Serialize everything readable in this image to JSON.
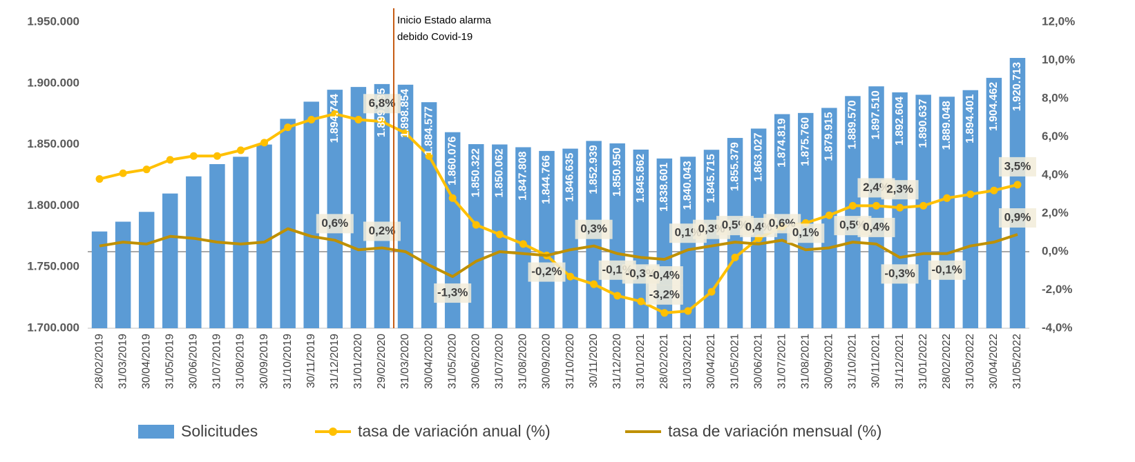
{
  "chart_data": {
    "type": "bar-line",
    "annotation": [
      "Inicio Estado alarma",
      "debido Covid-19"
    ],
    "categories": [
      "28/02/2019",
      "31/03/2019",
      "30/04/2019",
      "31/05/2019",
      "30/06/2019",
      "31/07/2019",
      "31/08/2019",
      "30/09/2019",
      "31/10/2019",
      "30/11/2019",
      "31/12/2019",
      "31/01/2020",
      "29/02/2020",
      "31/03/2020",
      "30/04/2020",
      "31/05/2020",
      "30/06/2020",
      "31/07/2020",
      "31/08/2020",
      "30/09/2020",
      "31/10/2020",
      "30/11/2020",
      "31/12/2020",
      "31/01/2021",
      "28/02/2021",
      "31/03/2021",
      "30/04/2021",
      "31/05/2021",
      "30/06/2021",
      "31/07/2021",
      "31/08/2021",
      "30/09/2021",
      "31/10/2021",
      "30/11/2021",
      "31/12/2021",
      "31/01/2022",
      "28/02/2022",
      "31/03/2022",
      "30/04/2022",
      "31/05/2022"
    ],
    "ylim": [
      1700000,
      1950000
    ],
    "yticks": [
      {
        "value": 1700000,
        "label": "1.700.000"
      },
      {
        "value": 1750000,
        "label": "1.750.000"
      },
      {
        "value": 1800000,
        "label": "1.800.000"
      },
      {
        "value": 1850000,
        "label": "1.850.000"
      },
      {
        "value": 1900000,
        "label": "1.900.000"
      },
      {
        "value": 1950000,
        "label": "1.950.000"
      }
    ],
    "y2lim": [
      -4,
      12
    ],
    "y2ticks": [
      {
        "value": -4,
        "label": "-4,0%"
      },
      {
        "value": -2,
        "label": "-2,0%"
      },
      {
        "value": 0,
        "label": "0,0%"
      },
      {
        "value": 2,
        "label": "2,0%"
      },
      {
        "value": 4,
        "label": "4,0%"
      },
      {
        "value": 6,
        "label": "6,0%"
      },
      {
        "value": 8,
        "label": "8,0%"
      },
      {
        "value": 10,
        "label": "10,0%"
      },
      {
        "value": 12,
        "label": "12,0%"
      }
    ],
    "series": [
      {
        "name": "Solicitudes",
        "type": "bar",
        "color": "#5b9bd5",
        "values": [
          1779000,
          1787000,
          1795000,
          1810000,
          1824000,
          1834000,
          1840000,
          1850000,
          1871000,
          1885000,
          1894744,
          1897000,
          1899385,
          1898854,
          1884577,
          1860076,
          1850322,
          1850062,
          1847808,
          1844766,
          1846635,
          1852939,
          1850950,
          1845862,
          1838601,
          1840043,
          1845715,
          1855379,
          1863027,
          1874819,
          1875760,
          1879915,
          1889570,
          1897510,
          1892604,
          1890637,
          1889048,
          1894401,
          1904462,
          1920713
        ],
        "value_labels": [
          null,
          null,
          null,
          null,
          null,
          null,
          null,
          null,
          null,
          null,
          "1.894.744",
          null,
          "1.899.385",
          "1.898.854",
          "1.884.577",
          "1.860.076",
          "1.850.322",
          "1.850.062",
          "1.847.808",
          "1.844.766",
          "1.846.635",
          "1.852.939",
          "1.850.950",
          "1.845.862",
          "1.838.601",
          "1.840.043",
          "1.845.715",
          "1.855.379",
          "1.863.027",
          "1.874.819",
          "1.875.760",
          "1.879.915",
          "1.889.570",
          "1.897.510",
          "1.892.604",
          "1.890.637",
          "1.889.048",
          "1.894.401",
          "1.904.462",
          "1.920.713"
        ]
      },
      {
        "name": "tasa de variación anual (%)",
        "type": "line",
        "axis": "y2",
        "color": "#ffc000",
        "marker": true,
        "values": [
          3.8,
          4.1,
          4.3,
          4.8,
          5.0,
          5.0,
          5.3,
          5.7,
          6.5,
          6.9,
          7.2,
          6.9,
          6.8,
          6.2,
          5.0,
          2.8,
          1.4,
          0.9,
          0.4,
          -0.2,
          -1.3,
          -1.7,
          -2.3,
          -2.6,
          -3.2,
          -3.1,
          -2.1,
          -0.3,
          0.7,
          1.3,
          1.5,
          1.9,
          2.4,
          2.4,
          2.3,
          2.4,
          2.8,
          3.0,
          3.2,
          3.5
        ],
        "value_labels": [
          null,
          null,
          null,
          null,
          null,
          null,
          null,
          null,
          null,
          null,
          null,
          null,
          "6,8%",
          null,
          null,
          null,
          null,
          null,
          null,
          null,
          null,
          null,
          null,
          null,
          "-3,2%",
          null,
          null,
          null,
          null,
          null,
          null,
          null,
          null,
          "2,4%",
          "2,3%",
          null,
          null,
          null,
          null,
          "3,5%"
        ]
      },
      {
        "name": "tasa de variación mensual (%)",
        "type": "line",
        "axis": "y2",
        "color": "#bf9000",
        "marker": false,
        "values": [
          0.3,
          0.5,
          0.4,
          0.8,
          0.7,
          0.5,
          0.4,
          0.5,
          1.2,
          0.8,
          0.6,
          0.1,
          0.2,
          0.0,
          -0.7,
          -1.3,
          -0.5,
          0.0,
          -0.1,
          -0.2,
          0.1,
          0.3,
          -0.1,
          -0.3,
          -0.4,
          0.1,
          0.3,
          0.5,
          0.4,
          0.6,
          0.1,
          0.2,
          0.5,
          0.4,
          -0.3,
          -0.1,
          -0.1,
          0.3,
          0.5,
          0.9
        ],
        "value_labels": [
          null,
          null,
          null,
          null,
          null,
          null,
          null,
          null,
          null,
          null,
          "0,6%",
          null,
          "0,2%",
          null,
          null,
          "-1,3%",
          null,
          null,
          null,
          "-0,2%",
          null,
          "0,3%",
          "-0,1%",
          "-0,3%",
          "-0,4%",
          "0,1%",
          "0,3%",
          "0,5%",
          "0,4%",
          "0,6%",
          "0,1%",
          null,
          "0,5%",
          "0,4%",
          "-0,3%",
          null,
          "-0,1%",
          null,
          null,
          "0,9%"
        ]
      }
    ]
  }
}
